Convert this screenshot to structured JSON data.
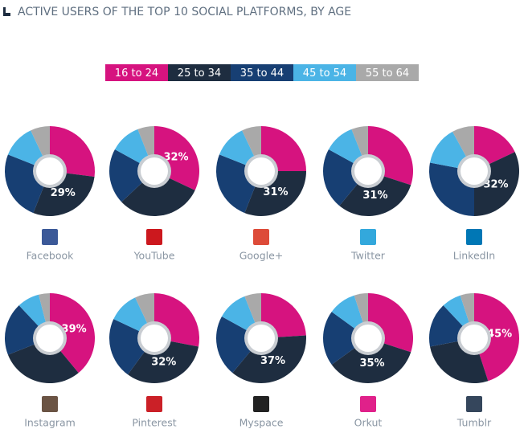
{
  "title": "ACTIVE USERS OF THE TOP 10 SOCIAL PLATFORMS, BY AGE",
  "legend": [
    {
      "label": "16 to 24",
      "color": "#d6137f"
    },
    {
      "label": "25 to 34",
      "color": "#1e2d40"
    },
    {
      "label": "35 to 44",
      "color": "#173f73"
    },
    {
      "label": "45 to 54",
      "color": "#4bb4e6"
    },
    {
      "label": "55 to 64",
      "color": "#a9a9a9"
    }
  ],
  "chart_data": [
    {
      "type": "pie",
      "title": "Facebook",
      "values": [
        27,
        29,
        25,
        12,
        7
      ],
      "value_labels": [
        null,
        "29%",
        null,
        null,
        null
      ]
    },
    {
      "type": "pie",
      "title": "YouTube",
      "values": [
        32,
        31,
        20,
        11,
        6
      ],
      "value_labels": [
        "32%",
        null,
        null,
        null,
        null
      ]
    },
    {
      "type": "pie",
      "title": "Google+",
      "values": [
        25,
        31,
        25,
        12,
        7
      ],
      "value_labels": [
        null,
        "31%",
        null,
        null,
        null
      ]
    },
    {
      "type": "pie",
      "title": "Twitter",
      "values": [
        30,
        31,
        22,
        11,
        6
      ],
      "value_labels": [
        null,
        "31%",
        null,
        null,
        null
      ]
    },
    {
      "type": "pie",
      "title": "LinkedIn",
      "values": [
        18,
        32,
        28,
        14,
        8
      ],
      "value_labels": [
        null,
        "32%",
        null,
        null,
        null
      ]
    },
    {
      "type": "pie",
      "title": "Instagram",
      "values": [
        39,
        30,
        19,
        8,
        4
      ],
      "value_labels": [
        "39%",
        null,
        null,
        null,
        null
      ]
    },
    {
      "type": "pie",
      "title": "Pinterest",
      "values": [
        28,
        32,
        22,
        11,
        7
      ],
      "value_labels": [
        null,
        "32%",
        null,
        null,
        null
      ]
    },
    {
      "type": "pie",
      "title": "Myspace",
      "values": [
        24,
        37,
        22,
        11,
        6
      ],
      "value_labels": [
        null,
        "37%",
        null,
        null,
        null
      ]
    },
    {
      "type": "pie",
      "title": "Orkut",
      "values": [
        30,
        35,
        20,
        10,
        5
      ],
      "value_labels": [
        null,
        "35%",
        null,
        null,
        null
      ]
    },
    {
      "type": "pie",
      "title": "Tumblr",
      "values": [
        45,
        27,
        16,
        7,
        5
      ],
      "value_labels": [
        "45%",
        null,
        null,
        null,
        null
      ]
    }
  ]
}
